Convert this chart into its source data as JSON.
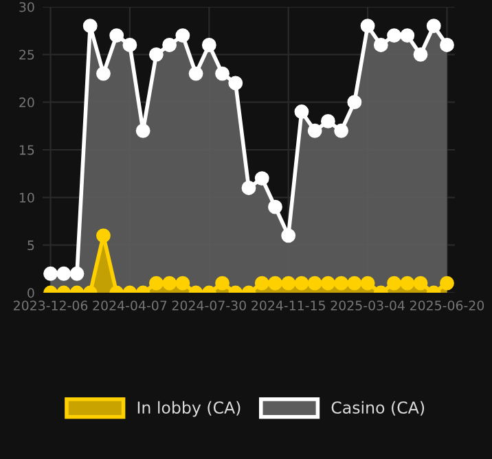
{
  "chart_data": {
    "type": "area",
    "categories": [
      "2023-12-06",
      null,
      null,
      null,
      null,
      null,
      "2024-04-07",
      null,
      null,
      null,
      null,
      null,
      "2024-07-30",
      null,
      null,
      null,
      null,
      null,
      "2024-11-15",
      null,
      null,
      null,
      null,
      null,
      "2025-03-04",
      null,
      null,
      null,
      null,
      null,
      "2025-06-20"
    ],
    "series": [
      {
        "name": "In lobby (CA)",
        "color": "#ffd000",
        "values": [
          0,
          0,
          0,
          0,
          6,
          0,
          0,
          0,
          1,
          1,
          1,
          0,
          0,
          1,
          0,
          0,
          1,
          1,
          1,
          1,
          1,
          1,
          1,
          1,
          1,
          0,
          1,
          1,
          1,
          0,
          1
        ]
      },
      {
        "name": "Casino (CA)",
        "color": "#ffffff",
        "values": [
          2,
          2,
          2,
          28,
          23,
          27,
          26,
          17,
          25,
          26,
          27,
          23,
          26,
          23,
          22,
          11,
          12,
          9,
          6,
          19,
          17,
          18,
          17,
          20,
          28,
          26,
          27,
          27,
          25,
          28,
          26
        ]
      }
    ],
    "ylim": [
      0,
      30
    ],
    "yticks": [
      0,
      5,
      10,
      15,
      20,
      25,
      30
    ],
    "grid": true,
    "legend": "bottom",
    "marker": "circle",
    "line_style": "solid"
  }
}
